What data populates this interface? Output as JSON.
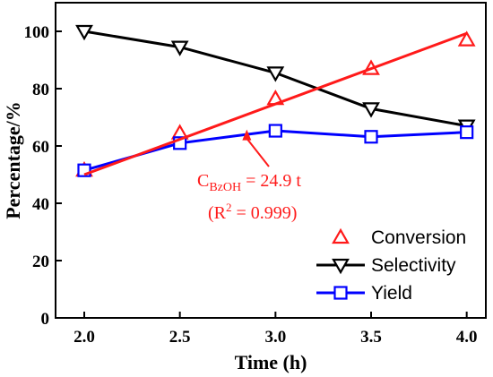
{
  "chart_data": {
    "type": "line",
    "xlabel": "Time (h)",
    "ylabel": "Percentage/%",
    "xlim": [
      1.85,
      4.1
    ],
    "ylim": [
      0,
      110
    ],
    "x_ticks": [
      "2.0",
      "2.5",
      "3.0",
      "3.5",
      "4.0"
    ],
    "y_ticks": [
      "0",
      "20",
      "40",
      "60",
      "80",
      "100"
    ],
    "x": [
      2.0,
      2.5,
      3.0,
      3.5,
      4.0
    ],
    "series": [
      {
        "name": "Conversion",
        "values": [
          51.5,
          64.5,
          76.5,
          87,
          97
        ],
        "color": "#ff1a1a",
        "marker": "triangle-up",
        "connected": false
      },
      {
        "name": "Selectivity",
        "values": [
          100,
          94.5,
          85.5,
          73,
          67
        ],
        "color": "#000000",
        "marker": "triangle-down",
        "connected": true
      },
      {
        "name": "Yield",
        "values": [
          51.5,
          61,
          65.3,
          63.2,
          64.8
        ],
        "color": "#0000ff",
        "marker": "square",
        "connected": true
      }
    ],
    "fit_line": {
      "x": [
        2.0,
        4.0
      ],
      "y": [
        50,
        99.3
      ],
      "color": "#ff1a1a"
    },
    "annotation": {
      "formula_main": "C",
      "formula_sub": "BzOH",
      "formula_rest": " = 24.9 t",
      "r2_open": "(R",
      "r2_sup": "2",
      "r2_rest": " = 0.999)",
      "arrow_to": [
        2.85,
        67
      ],
      "color": "#ff1a1a"
    },
    "legend_position": "bottom-right"
  }
}
